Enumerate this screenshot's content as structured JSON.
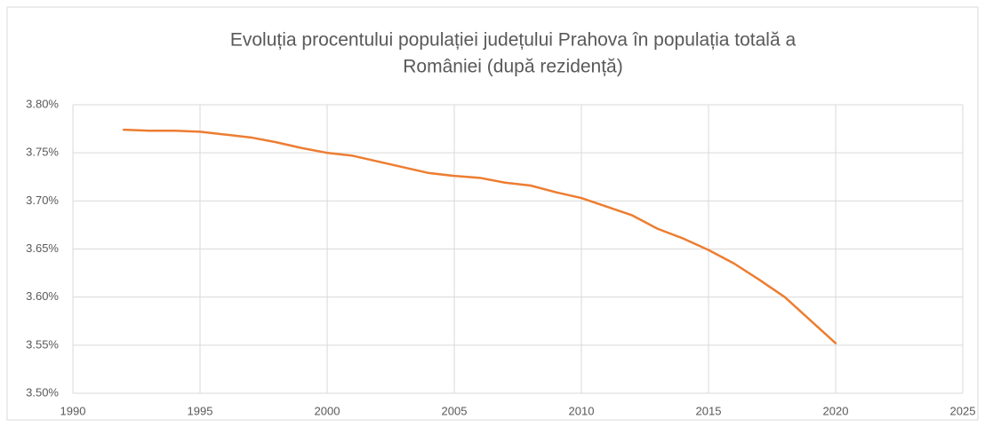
{
  "chart_data": {
    "type": "line",
    "title": [
      "Evoluția procentului populației județului Prahova în populația totală a",
      "României (după rezidență)"
    ],
    "x": [
      1992,
      1993,
      1994,
      1995,
      1996,
      1997,
      1998,
      1999,
      2000,
      2001,
      2002,
      2003,
      2004,
      2005,
      2006,
      2007,
      2008,
      2009,
      2010,
      2011,
      2012,
      2013,
      2014,
      2015,
      2016,
      2017,
      2018,
      2019,
      2020
    ],
    "series": [
      {
        "name": "Prahova",
        "color": "#ed7d31",
        "values": [
          3.774,
          3.773,
          3.773,
          3.772,
          3.769,
          3.766,
          3.761,
          3.755,
          3.75,
          3.747,
          3.741,
          3.735,
          3.729,
          3.726,
          3.724,
          3.719,
          3.716,
          3.709,
          3.703,
          3.694,
          3.685,
          3.671,
          3.661,
          3.649,
          3.635,
          3.618,
          3.6,
          3.576,
          3.552
        ]
      }
    ],
    "xlim": [
      1990,
      2025
    ],
    "xticks": [
      1990,
      1995,
      2000,
      2005,
      2010,
      2015,
      2020,
      2025
    ],
    "ylim": [
      3.5,
      3.8
    ],
    "yticks": [
      {
        "value": 3.5,
        "label": "3.50%"
      },
      {
        "value": 3.55,
        "label": "3.55%"
      },
      {
        "value": 3.6,
        "label": "3.60%"
      },
      {
        "value": 3.65,
        "label": "3.65%"
      },
      {
        "value": 3.7,
        "label": "3.70%"
      },
      {
        "value": 3.75,
        "label": "3.75%"
      },
      {
        "value": 3.8,
        "label": "3.80%"
      }
    ],
    "grid": true
  }
}
